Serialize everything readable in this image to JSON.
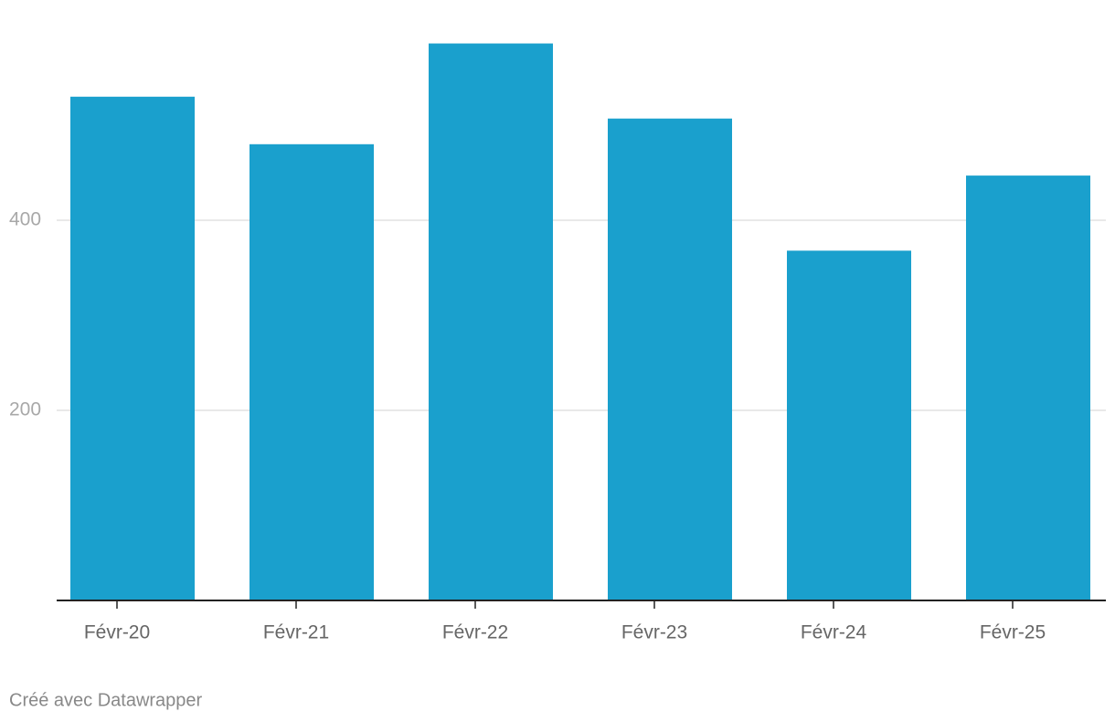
{
  "chart_data": {
    "type": "bar",
    "categories": [
      "Févr-20",
      "Févr-21",
      "Févr-22",
      "Févr-23",
      "Févr-24",
      "Févr-25"
    ],
    "values": [
      530,
      480,
      586,
      507,
      368,
      447
    ],
    "color": "#1aa0cd",
    "ylim": [
      0,
      600
    ],
    "yticks": [
      200,
      400
    ],
    "grid": true,
    "footer": "Créé avec Datawrapper"
  }
}
